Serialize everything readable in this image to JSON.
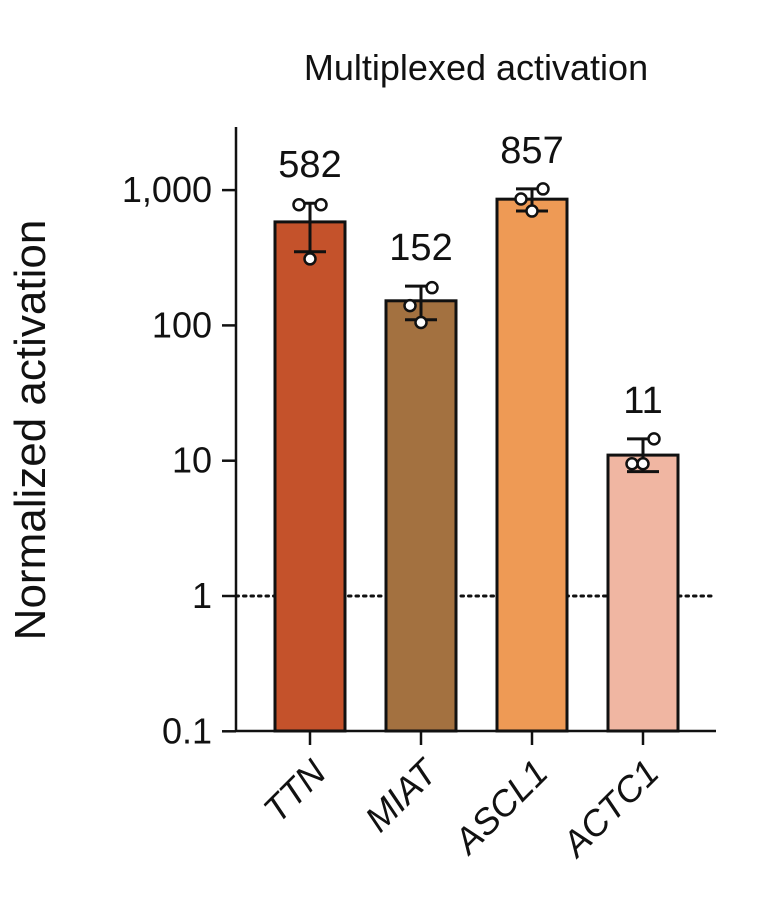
{
  "chart_data": {
    "type": "bar",
    "title": "Multiplexed activation",
    "xlabel": "",
    "ylabel": "Normalized activation",
    "yscale": "log",
    "ylim": [
      0.1,
      3000
    ],
    "yticks": [
      0.1,
      1,
      10,
      100,
      1000
    ],
    "ytick_labels": [
      "0.1",
      "1",
      "10",
      "100",
      "1,000"
    ],
    "reference_line": {
      "y": 1,
      "style": "dotted"
    },
    "categories": [
      "TTN",
      "MIAT",
      "ASCL1",
      "ACTC1"
    ],
    "values": [
      582,
      152,
      857,
      11
    ],
    "value_labels": [
      "582",
      "152",
      "857",
      "11"
    ],
    "error_bars": [
      {
        "low": 350,
        "high": 800
      },
      {
        "low": 110,
        "high": 195
      },
      {
        "low": 700,
        "high": 1020
      },
      {
        "low": 8.3,
        "high": 14.5
      }
    ],
    "replicates": [
      [
        310,
        780,
        780
      ],
      [
        105,
        140,
        190
      ],
      [
        700,
        860,
        1020
      ],
      [
        9.5,
        9.5,
        14.5
      ]
    ],
    "colors": [
      "#c4522b",
      "#a37140",
      "#ee9a55",
      "#f0b6a2"
    ],
    "grid": false,
    "legend": "none"
  }
}
